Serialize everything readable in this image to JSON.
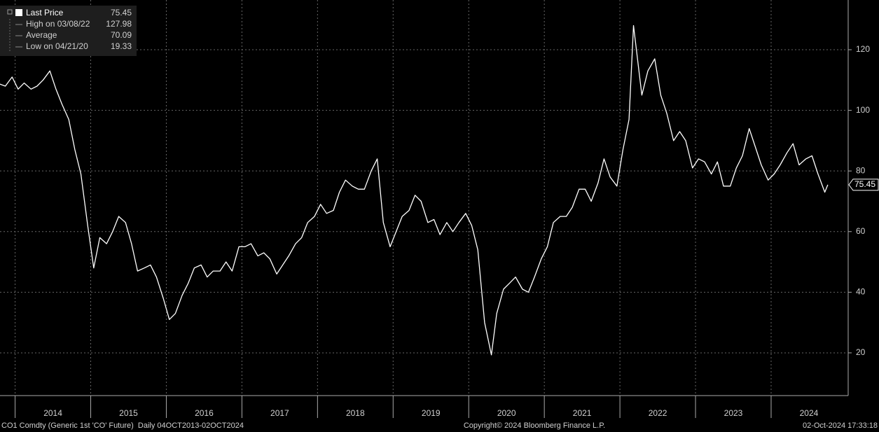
{
  "chart_data": {
    "type": "line",
    "series": [
      {
        "name": "Last Price",
        "color": "#ffffff",
        "x": [
          2013.76,
          2013.87,
          2013.96,
          2014.04,
          2014.12,
          2014.21,
          2014.29,
          2014.37,
          2014.46,
          2014.54,
          2014.62,
          2014.71,
          2014.79,
          2014.87,
          2014.96,
          2015.04,
          2015.12,
          2015.21,
          2015.29,
          2015.37,
          2015.46,
          2015.54,
          2015.62,
          2015.71,
          2015.79,
          2015.87,
          2015.96,
          2016.04,
          2016.12,
          2016.21,
          2016.29,
          2016.37,
          2016.46,
          2016.54,
          2016.62,
          2016.71,
          2016.79,
          2016.87,
          2016.96,
          2017.04,
          2017.12,
          2017.21,
          2017.29,
          2017.37,
          2017.46,
          2017.54,
          2017.62,
          2017.71,
          2017.79,
          2017.87,
          2017.96,
          2018.04,
          2018.12,
          2018.21,
          2018.29,
          2018.37,
          2018.46,
          2018.54,
          2018.62,
          2018.71,
          2018.79,
          2018.87,
          2018.96,
          2019.04,
          2019.12,
          2019.21,
          2019.29,
          2019.37,
          2019.46,
          2019.54,
          2019.62,
          2019.71,
          2019.79,
          2019.87,
          2019.96,
          2020.04,
          2020.12,
          2020.21,
          2020.3,
          2020.37,
          2020.46,
          2020.54,
          2020.62,
          2020.71,
          2020.79,
          2020.87,
          2020.96,
          2021.04,
          2021.12,
          2021.21,
          2021.29,
          2021.37,
          2021.46,
          2021.54,
          2021.62,
          2021.71,
          2021.79,
          2021.87,
          2021.96,
          2022.04,
          2022.12,
          2022.18,
          2022.29,
          2022.37,
          2022.46,
          2022.54,
          2022.62,
          2022.71,
          2022.79,
          2022.87,
          2022.96,
          2023.04,
          2023.12,
          2023.21,
          2023.29,
          2023.37,
          2023.46,
          2023.54,
          2023.62,
          2023.71,
          2023.79,
          2023.87,
          2023.96,
          2024.04,
          2024.12,
          2024.21,
          2024.29,
          2024.37,
          2024.46,
          2024.54,
          2024.62,
          2024.71,
          2024.75
        ],
        "values": [
          109,
          108,
          111,
          107,
          109,
          107,
          108,
          110,
          113,
          107,
          102,
          97,
          87,
          79,
          62,
          48,
          58,
          56,
          60,
          65,
          63,
          56,
          47,
          48,
          49,
          45,
          38,
          31,
          33,
          39,
          43,
          48,
          49,
          45,
          47,
          47,
          50,
          47,
          55,
          55,
          56,
          52,
          53,
          51,
          46,
          49,
          52,
          56,
          58,
          63,
          65,
          69,
          66,
          67,
          73,
          77,
          75,
          74,
          74,
          80,
          84,
          63,
          55,
          60,
          65,
          67,
          72,
          70,
          63,
          64,
          59,
          63,
          60,
          63,
          66,
          62,
          54,
          30,
          19.33,
          33,
          41,
          43,
          45,
          41,
          40,
          45,
          51,
          55,
          63,
          65,
          65,
          68,
          74,
          74,
          70,
          76,
          84,
          78,
          75,
          87,
          97,
          127.98,
          105,
          113,
          117,
          105,
          99,
          90,
          93,
          90,
          81,
          84,
          83,
          79,
          83,
          75,
          75,
          81,
          85,
          94,
          88,
          82,
          77,
          79,
          82,
          86,
          89,
          82,
          84,
          85,
          79,
          73,
          75.45
        ]
      }
    ],
    "last_price": 75.45,
    "stats": [
      {
        "label": "High on 03/08/22",
        "value": 127.98
      },
      {
        "label": "Average",
        "value": 70.09
      },
      {
        "label": "Low on 04/21/20",
        "value": 19.33
      }
    ],
    "xlim": [
      2013.8,
      2025.01
    ],
    "xticks": [
      {
        "value": 2014.5,
        "label": "2014"
      },
      {
        "value": 2015.5,
        "label": "2015"
      },
      {
        "value": 2016.5,
        "label": "2016"
      },
      {
        "value": 2017.5,
        "label": "2017"
      },
      {
        "value": 2018.5,
        "label": "2018"
      },
      {
        "value": 2019.5,
        "label": "2019"
      },
      {
        "value": 2020.5,
        "label": "2020"
      },
      {
        "value": 2021.5,
        "label": "2021"
      },
      {
        "value": 2022.5,
        "label": "2022"
      },
      {
        "value": 2023.5,
        "label": "2023"
      },
      {
        "value": 2024.5,
        "label": "2024"
      }
    ],
    "xgrid": [
      2014,
      2015,
      2016,
      2017,
      2018,
      2019,
      2020,
      2021,
      2022,
      2023,
      2024
    ],
    "ylim": [
      5.9,
      136.4
    ],
    "yticks": [
      20,
      40,
      60,
      80,
      100,
      120
    ],
    "grid": true,
    "footer": {
      "left": "CO1 Comdty (Generic 1st 'CO' Future)  Daily 04OCT2013-02OCT2024",
      "center": "Copyright© 2024 Bloomberg Finance L.P.",
      "right": "02-Oct-2024 17:33:18"
    }
  }
}
